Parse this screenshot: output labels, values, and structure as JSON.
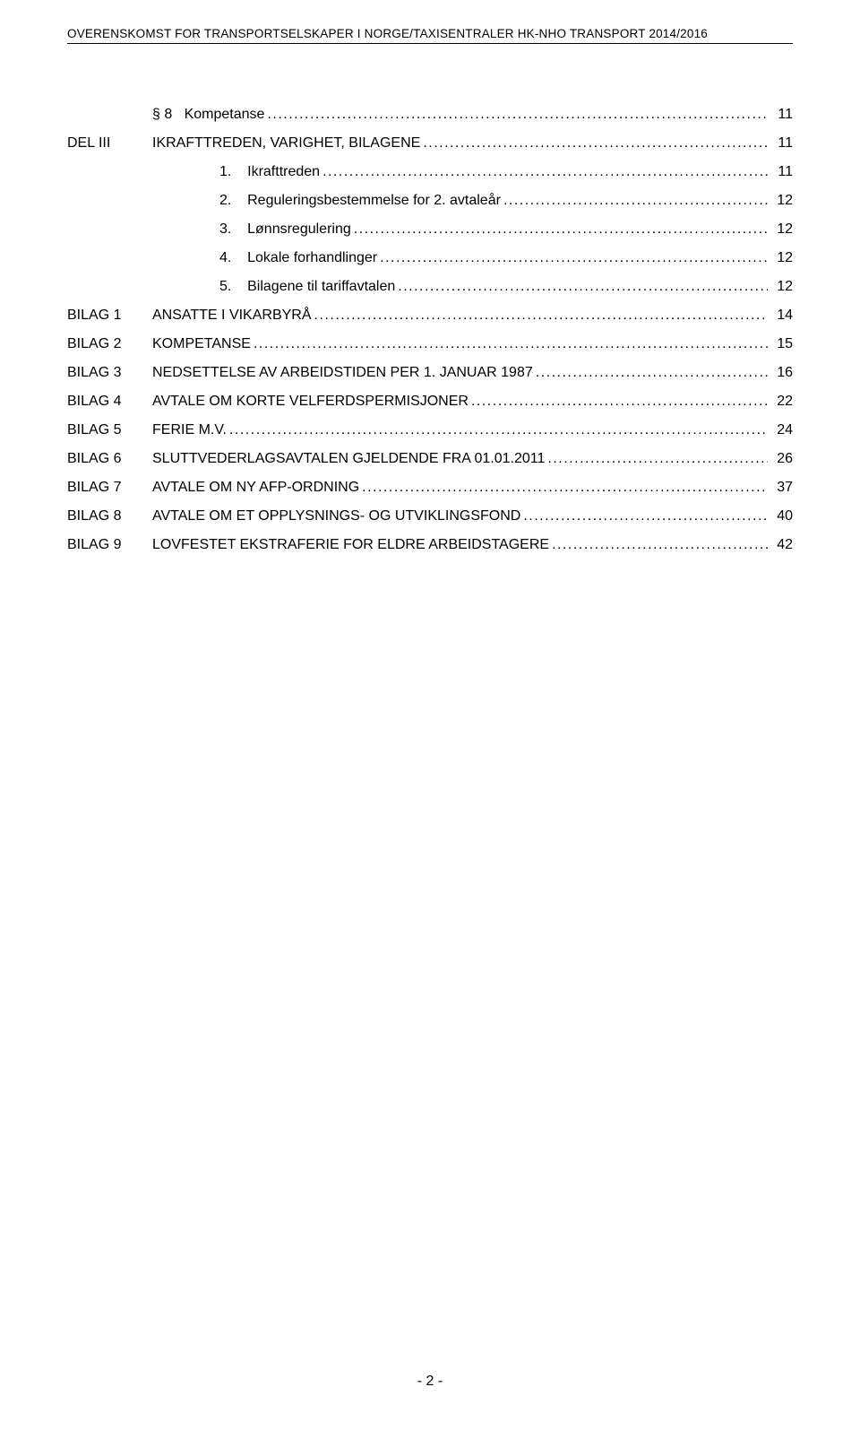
{
  "header": "OVERENSKOMST FOR TRANSPORTSELSKAPER I NORGE/TAXISENTRALER HK-NHO TRANSPORT 2014/2016",
  "toc": [
    {
      "left": "",
      "indent": "indent-section",
      "title": "§ 8   Kompetanse",
      "page": "11",
      "titleClass": ""
    },
    {
      "left": "DEL III",
      "indent": "",
      "title": "IKRAFTTREDEN, VARIGHET, BILAGENE",
      "page": "11",
      "titleClass": "smallcaps",
      "leftClass": "smallcaps"
    },
    {
      "left": "",
      "indent": "indent-num",
      "title": "1.    Ikrafttreden",
      "page": "11",
      "titleClass": ""
    },
    {
      "left": "",
      "indent": "indent-num",
      "title": "2.    Reguleringsbestemmelse for 2. avtaleår",
      "page": "12",
      "titleClass": ""
    },
    {
      "left": "",
      "indent": "indent-num",
      "title": "3.    Lønnsregulering",
      "page": "12",
      "titleClass": ""
    },
    {
      "left": "",
      "indent": "indent-num",
      "title": "4.    Lokale forhandlinger",
      "page": "12",
      "titleClass": ""
    },
    {
      "left": "",
      "indent": "indent-num",
      "title": "5.    Bilagene til tariffavtalen",
      "page": "12",
      "titleClass": ""
    },
    {
      "left": "BILAG 1",
      "indent": "",
      "title": "ANSATTE I VIKARBYRÅ",
      "page": "14",
      "titleClass": "smallcaps",
      "leftClass": "smallcaps"
    },
    {
      "left": "BILAG 2",
      "indent": "",
      "title": "KOMPETANSE",
      "page": "15",
      "titleClass": "smallcaps",
      "leftClass": "smallcaps"
    },
    {
      "left": "BILAG 3",
      "indent": "",
      "title": "NEDSETTELSE AV ARBEIDSTIDEN PER 1. JANUAR 1987",
      "page": "16",
      "titleClass": "smallcaps",
      "leftClass": "smallcaps"
    },
    {
      "left": "BILAG 4",
      "indent": "",
      "title": "AVTALE OM KORTE VELFERDSPERMISJONER",
      "page": "22",
      "titleClass": "smallcaps",
      "leftClass": "smallcaps"
    },
    {
      "left": "BILAG 5",
      "indent": "",
      "title": "FERIE M.V.",
      "page": "24",
      "titleClass": "smallcaps",
      "leftClass": "smallcaps"
    },
    {
      "left": "BILAG 6",
      "indent": "",
      "title": "SLUTTVEDERLAGSAVTALEN GJELDENDE FRA 01.01.2011",
      "page": "26",
      "titleClass": "smallcaps",
      "leftClass": "smallcaps"
    },
    {
      "left": "BILAG 7",
      "indent": "",
      "title": "AVTALE OM NY AFP-ORDNING",
      "page": "37",
      "titleClass": "smallcaps",
      "leftClass": "smallcaps"
    },
    {
      "left": "BILAG 8",
      "indent": "",
      "title": "AVTALE OM ET OPPLYSNINGS- OG UTVIKLINGSFOND",
      "page": "40",
      "titleClass": "smallcaps",
      "leftClass": "smallcaps"
    },
    {
      "left": "BILAG 9",
      "indent": "",
      "title": "LOVFESTET EKSTRAFERIE FOR ELDRE ARBEIDSTAGERE",
      "page": "42",
      "titleClass": "smallcaps",
      "leftClass": "smallcaps"
    }
  ],
  "footer": {
    "page": "- 2 -"
  }
}
